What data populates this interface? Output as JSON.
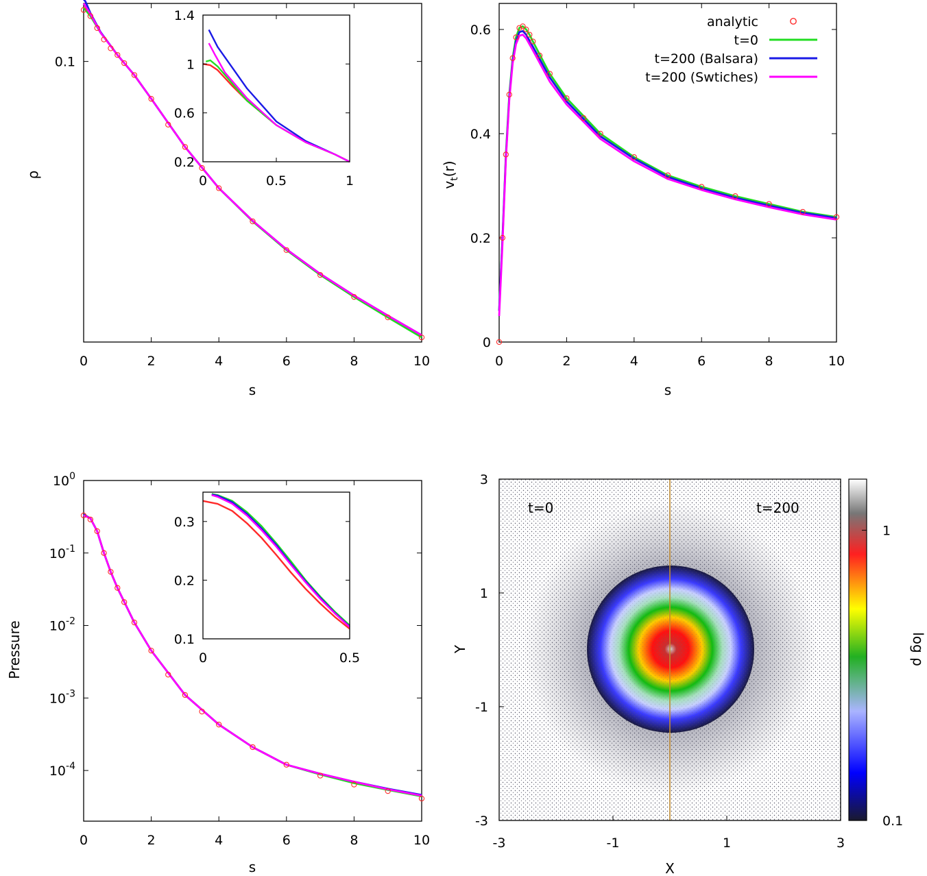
{
  "colors": {
    "analytic": "#ff2a2a",
    "t0": "#22dd22",
    "balsara": "#1a1ae6",
    "switches": "#ff00ff",
    "divider": "#c08a30"
  },
  "chart_data": [
    {
      "id": "density",
      "type": "line",
      "ylabel": "ρ",
      "xlabel": "s",
      "xlim": [
        0,
        10
      ],
      "ylim": [
        0.0035,
        0.2
      ],
      "yscale": "log",
      "xticks": [
        0,
        2,
        4,
        6,
        8,
        10
      ],
      "xtick_labels": [
        "0",
        "2",
        "4",
        "6",
        "8",
        "10"
      ],
      "yticks": [
        0.1
      ],
      "ytick_labels": [
        "0.1"
      ],
      "series": [
        {
          "name": "analytic",
          "marker": "circle",
          "x": [
            0,
            0.2,
            0.4,
            0.6,
            0.8,
            1.0,
            1.2,
            1.5,
            2.0,
            2.5,
            3.0,
            3.5,
            4.0,
            5.0,
            6.0,
            7.0,
            8.0,
            9.0,
            10.0
          ],
          "y": [
            0.185,
            0.172,
            0.149,
            0.13,
            0.117,
            0.108,
            0.098,
            0.085,
            0.064,
            0.047,
            0.036,
            0.028,
            0.022,
            0.0148,
            0.0105,
            0.0078,
            0.006,
            0.0047,
            0.0037
          ]
        },
        {
          "name": "t=0",
          "x": [
            0,
            0.2,
            0.5,
            1,
            1.5,
            2,
            3,
            4,
            5,
            6,
            7,
            8,
            9,
            10
          ],
          "y": [
            0.19,
            0.172,
            0.141,
            0.108,
            0.085,
            0.064,
            0.036,
            0.022,
            0.0148,
            0.0105,
            0.0078,
            0.006,
            0.0047,
            0.0037
          ]
        },
        {
          "name": "t=200 (Balsara)",
          "x": [
            0,
            0.05,
            0.2,
            0.5,
            1,
            1.5,
            2,
            3,
            4,
            5,
            6,
            7,
            8,
            9,
            10
          ],
          "y": [
            0.21,
            0.205,
            0.178,
            0.142,
            0.108,
            0.085,
            0.064,
            0.036,
            0.022,
            0.0149,
            0.0106,
            0.0079,
            0.0061,
            0.0048,
            0.0038
          ]
        },
        {
          "name": "t=200 (Swtiches)",
          "x": [
            0,
            0.2,
            0.5,
            1,
            1.5,
            2,
            3,
            4,
            5,
            6,
            7,
            8,
            9,
            10
          ],
          "y": [
            0.2,
            0.176,
            0.141,
            0.108,
            0.085,
            0.064,
            0.036,
            0.022,
            0.0149,
            0.0106,
            0.0079,
            0.0061,
            0.0048,
            0.0038
          ]
        }
      ],
      "inset": {
        "xlim": [
          0,
          1
        ],
        "ylim": [
          0.2,
          1.4
        ],
        "xticks": [
          0,
          0.5,
          1
        ],
        "xtick_labels": [
          "0",
          "0.5",
          "1"
        ],
        "yticks": [
          0.2,
          0.6,
          1,
          1.4
        ],
        "ytick_labels": [
          "0.2",
          "0.6",
          "1",
          "1.4"
        ],
        "series": [
          {
            "name": "analytic",
            "x": [
              0,
              0.05,
              0.1,
              0.2,
              0.3,
              0.5,
              0.7,
              0.9,
              1.0
            ],
            "y": [
              1.0,
              0.99,
              0.95,
              0.82,
              0.7,
              0.5,
              0.36,
              0.26,
              0.2
            ]
          },
          {
            "name": "t=0",
            "x": [
              0.02,
              0.05,
              0.1,
              0.2,
              0.3,
              0.5,
              0.7,
              0.9,
              1.0
            ],
            "y": [
              1.02,
              1.03,
              0.98,
              0.84,
              0.7,
              0.5,
              0.36,
              0.26,
              0.2
            ]
          },
          {
            "name": "t=200 (Balsara)",
            "x": [
              0.04,
              0.1,
              0.2,
              0.3,
              0.5,
              0.7,
              0.9,
              1.0
            ],
            "y": [
              1.28,
              1.14,
              0.97,
              0.8,
              0.53,
              0.37,
              0.26,
              0.2
            ]
          },
          {
            "name": "t=200 (Swtiches)",
            "x": [
              0.04,
              0.08,
              0.15,
              0.3,
              0.5,
              0.7,
              0.9,
              1.0
            ],
            "y": [
              1.17,
              1.08,
              0.93,
              0.72,
              0.5,
              0.36,
              0.26,
              0.2
            ]
          }
        ]
      }
    },
    {
      "id": "velocity",
      "type": "line",
      "ylabel": "vt(r)",
      "ylabel_main": "v",
      "ylabel_sub": "t",
      "ylabel_suffix": "(r)",
      "xlabel": "s",
      "xlim": [
        0,
        10
      ],
      "ylim": [
        0,
        0.65
      ],
      "xticks": [
        0,
        2,
        4,
        6,
        8,
        10
      ],
      "xtick_labels": [
        "0",
        "2",
        "4",
        "6",
        "8",
        "10"
      ],
      "yticks": [
        0,
        0.2,
        0.4,
        0.6
      ],
      "ytick_labels": [
        "0",
        "0.2",
        "0.4",
        "0.6"
      ],
      "legend": {
        "position": "top-right",
        "entries": [
          "analytic",
          "t=0",
          "t=200 (Balsara)",
          "t=200 (Swtiches)"
        ]
      },
      "series": [
        {
          "name": "analytic",
          "marker": "circle",
          "x": [
            0,
            0.1,
            0.2,
            0.3,
            0.4,
            0.5,
            0.6,
            0.7,
            0.8,
            0.9,
            1.0,
            1.2,
            1.5,
            2.0,
            2.5,
            3.0,
            4.0,
            5.0,
            6.0,
            7.0,
            8.0,
            9.0,
            10.0
          ],
          "y": [
            0,
            0.2,
            0.36,
            0.475,
            0.545,
            0.585,
            0.603,
            0.606,
            0.6,
            0.59,
            0.577,
            0.55,
            0.515,
            0.468,
            0.43,
            0.4,
            0.355,
            0.32,
            0.298,
            0.28,
            0.265,
            0.25,
            0.24
          ]
        },
        {
          "name": "t=0",
          "x": [
            0,
            0.1,
            0.2,
            0.3,
            0.4,
            0.5,
            0.6,
            0.7,
            0.8,
            0.9,
            1.0,
            1.5,
            2,
            3,
            4,
            5,
            6,
            7,
            8,
            9,
            10
          ],
          "y": [
            0.06,
            0.2,
            0.36,
            0.475,
            0.545,
            0.585,
            0.603,
            0.606,
            0.6,
            0.59,
            0.577,
            0.515,
            0.468,
            0.4,
            0.355,
            0.32,
            0.298,
            0.28,
            0.265,
            0.25,
            0.24
          ]
        },
        {
          "name": "t=200 (Balsara)",
          "x": [
            0,
            0.1,
            0.2,
            0.3,
            0.4,
            0.5,
            0.6,
            0.7,
            0.8,
            1.0,
            1.5,
            2,
            3,
            4,
            5,
            6,
            7,
            8,
            9,
            10
          ],
          "y": [
            0.06,
            0.2,
            0.355,
            0.47,
            0.54,
            0.578,
            0.595,
            0.597,
            0.59,
            0.567,
            0.508,
            0.462,
            0.395,
            0.352,
            0.317,
            0.295,
            0.277,
            0.262,
            0.248,
            0.238
          ]
        },
        {
          "name": "t=200 (Swtiches)",
          "x": [
            0,
            0.1,
            0.2,
            0.3,
            0.4,
            0.5,
            0.6,
            0.7,
            0.8,
            1.0,
            1.5,
            2,
            3,
            4,
            5,
            6,
            7,
            8,
            9,
            10
          ],
          "y": [
            0.05,
            0.19,
            0.35,
            0.465,
            0.535,
            0.572,
            0.588,
            0.59,
            0.583,
            0.56,
            0.5,
            0.456,
            0.39,
            0.347,
            0.313,
            0.292,
            0.274,
            0.259,
            0.245,
            0.235
          ]
        }
      ]
    },
    {
      "id": "pressure",
      "type": "line",
      "ylabel": "Pressure",
      "xlabel": "s",
      "xlim": [
        0,
        10
      ],
      "ylim": [
        2e-05,
        1
      ],
      "yscale": "log",
      "xticks": [
        0,
        2,
        4,
        6,
        8,
        10
      ],
      "xtick_labels": [
        "0",
        "2",
        "4",
        "6",
        "8",
        "10"
      ],
      "yticks": [
        1,
        0.1,
        0.01,
        0.001,
        0.0001
      ],
      "ytick_labels": [
        [
          "10",
          "0"
        ],
        [
          "10",
          "-1"
        ],
        [
          "10",
          "-2"
        ],
        [
          "10",
          "-3"
        ],
        [
          "10",
          "-4"
        ]
      ],
      "series": [
        {
          "name": "analytic",
          "marker": "circle",
          "x": [
            0,
            0.2,
            0.4,
            0.6,
            0.8,
            1.0,
            1.2,
            1.5,
            2.0,
            2.5,
            3.0,
            3.5,
            4.0,
            5.0,
            6.0,
            7.0,
            8.0,
            9.0,
            10.0
          ],
          "y": [
            0.33,
            0.29,
            0.2,
            0.1,
            0.055,
            0.033,
            0.021,
            0.011,
            0.0045,
            0.0021,
            0.0011,
            0.00065,
            0.00043,
            0.00021,
            0.00012,
            8.5e-05,
            6.4e-05,
            5.2e-05,
            4.1e-05
          ]
        },
        {
          "name": "t=0",
          "x": [
            0,
            0.2,
            0.4,
            0.6,
            0.8,
            1.0,
            1.5,
            2,
            3,
            4,
            5,
            6,
            7,
            8,
            9,
            10
          ],
          "y": [
            0.34,
            0.3,
            0.2,
            0.1,
            0.055,
            0.033,
            0.011,
            0.0045,
            0.0011,
            0.00043,
            0.00021,
            0.00012,
            8.8e-05,
            6.7e-05,
            5.4e-05,
            4.4e-05
          ]
        },
        {
          "name": "t=200 (Balsara)",
          "x": [
            0,
            0.2,
            0.4,
            0.6,
            0.8,
            1.0,
            1.5,
            2,
            3,
            4,
            5,
            6,
            7,
            8,
            9,
            10
          ],
          "y": [
            0.34,
            0.3,
            0.2,
            0.1,
            0.055,
            0.033,
            0.011,
            0.0045,
            0.0011,
            0.00043,
            0.00021,
            0.00012,
            9e-05,
            7e-05,
            5.6e-05,
            4.6e-05
          ]
        },
        {
          "name": "t=200 (Swtiches)",
          "x": [
            0,
            0.2,
            0.4,
            0.6,
            0.8,
            1.0,
            1.5,
            2,
            3,
            4,
            5,
            6,
            7,
            8,
            9,
            10
          ],
          "y": [
            0.33,
            0.3,
            0.2,
            0.1,
            0.055,
            0.033,
            0.011,
            0.0045,
            0.0011,
            0.00043,
            0.00021,
            0.00012,
            9e-05,
            7e-05,
            5.5e-05,
            4.5e-05
          ]
        }
      ],
      "inset": {
        "xlim": [
          0,
          0.5
        ],
        "ylim": [
          0.1,
          0.35
        ],
        "xticks": [
          0,
          0.5
        ],
        "xtick_labels": [
          "0",
          "0.5"
        ],
        "yticks": [
          0.1,
          0.2,
          0.3
        ],
        "ytick_labels": [
          "0.1",
          "0.2",
          "0.3"
        ],
        "series": [
          {
            "name": "analytic",
            "x": [
              0,
              0.05,
              0.1,
              0.15,
              0.2,
              0.25,
              0.3,
              0.35,
              0.4,
              0.45,
              0.5
            ],
            "y": [
              0.335,
              0.33,
              0.318,
              0.297,
              0.272,
              0.243,
              0.213,
              0.185,
              0.16,
              0.137,
              0.117
            ]
          },
          {
            "name": "t=0",
            "x": [
              0.03,
              0.05,
              0.1,
              0.15,
              0.2,
              0.25,
              0.3,
              0.35,
              0.4,
              0.45,
              0.5
            ],
            "y": [
              0.347,
              0.345,
              0.335,
              0.316,
              0.292,
              0.263,
              0.232,
              0.2,
              0.172,
              0.146,
              0.123
            ]
          },
          {
            "name": "t=200 (Balsara)",
            "x": [
              0.03,
              0.05,
              0.1,
              0.15,
              0.2,
              0.25,
              0.3,
              0.35,
              0.4,
              0.45,
              0.5
            ],
            "y": [
              0.346,
              0.344,
              0.333,
              0.313,
              0.288,
              0.26,
              0.228,
              0.198,
              0.17,
              0.144,
              0.121
            ]
          },
          {
            "name": "t=200 (Swtiches)",
            "x": [
              0.03,
              0.05,
              0.1,
              0.15,
              0.2,
              0.25,
              0.3,
              0.35,
              0.4,
              0.45,
              0.5
            ],
            "y": [
              0.345,
              0.342,
              0.33,
              0.31,
              0.285,
              0.257,
              0.226,
              0.196,
              0.168,
              0.143,
              0.12
            ]
          }
        ]
      }
    },
    {
      "id": "density_map",
      "type": "heatmap",
      "xlabel": "X",
      "ylabel": "Y",
      "xlim": [
        -3,
        3
      ],
      "ylim": [
        -3,
        3
      ],
      "xticks": [
        -3,
        -1,
        1,
        3
      ],
      "xtick_labels": [
        "-3",
        "-1",
        "1",
        "3"
      ],
      "yticks": [
        -3,
        -1,
        1,
        3
      ],
      "ytick_labels": [
        "-3",
        "-1",
        "1",
        "3"
      ],
      "annotations": [
        "t=0",
        "t=200"
      ],
      "colorbar": {
        "label": "log ρ",
        "scale": "log",
        "range": [
          0.1,
          1.5
        ],
        "ticks": [
          0.1,
          1
        ],
        "tick_labels": [
          "0.1",
          "1"
        ],
        "colors": [
          "#1a1a2e",
          "#0000ff",
          "#aab4ff",
          "#22b022",
          "#ffff00",
          "#ff2020",
          "#ffffff"
        ]
      }
    }
  ]
}
